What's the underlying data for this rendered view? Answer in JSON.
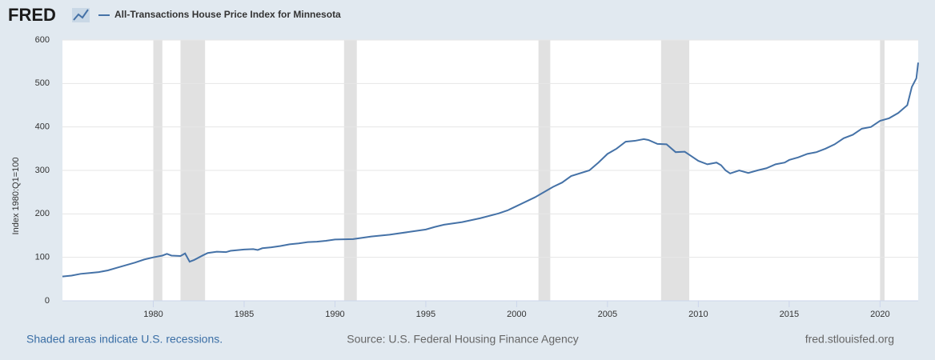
{
  "logo": "FRED",
  "chart_data": {
    "type": "line",
    "ylabel": "Index 1980:Q1=100",
    "series": [
      {
        "name": "All-Transactions House Price Index for Minnesota",
        "color": "#4572a7",
        "x": [
          1975,
          1975.5,
          1976,
          1976.5,
          1977,
          1977.5,
          1978,
          1978.5,
          1979,
          1979.5,
          1980,
          1980.5,
          1980.75,
          1981,
          1981.5,
          1981.75,
          1982,
          1982.25,
          1982.75,
          1983,
          1983.5,
          1984,
          1984.25,
          1985,
          1985.5,
          1985.75,
          1986,
          1986.5,
          1987,
          1987.5,
          1988,
          1988.5,
          1989,
          1989.5,
          1990,
          1991,
          1991.5,
          1992,
          1993,
          1994,
          1995,
          1995.5,
          1996,
          1997,
          1998,
          1999,
          1999.5,
          2000,
          2001,
          2002,
          2002.5,
          2003,
          2004,
          2004.5,
          2005,
          2005.5,
          2006,
          2006.5,
          2007,
          2007.25,
          2007.75,
          2008.25,
          2008.75,
          2009.25,
          2009.5,
          2010,
          2010.5,
          2011,
          2011.25,
          2011.5,
          2011.75,
          2012.25,
          2012.75,
          2013.25,
          2013.75,
          2014.25,
          2014.75,
          2015,
          2015.5,
          2016,
          2016.5,
          2017,
          2017.5,
          2018,
          2018.5,
          2019,
          2019.5,
          2020,
          2020.5,
          2021,
          2021.5,
          2021.75,
          2022,
          2022.1
        ],
        "values": [
          56,
          58,
          62,
          64,
          66,
          70,
          76,
          82,
          88,
          95,
          100,
          104,
          108,
          104,
          103,
          109,
          90,
          94,
          105,
          110,
          113,
          112,
          115,
          118,
          119,
          117,
          121,
          123,
          126,
          130,
          132,
          135,
          136,
          138,
          141,
          142,
          145,
          148,
          152,
          158,
          164,
          170,
          175,
          181,
          190,
          201,
          208,
          218,
          238,
          262,
          272,
          287,
          300,
          318,
          338,
          350,
          366,
          368,
          372,
          370,
          361,
          360,
          342,
          343,
          336,
          322,
          314,
          318,
          312,
          300,
          293,
          300,
          294,
          300,
          305,
          314,
          318,
          324,
          330,
          338,
          342,
          350,
          360,
          374,
          382,
          396,
          400,
          414,
          420,
          432,
          450,
          492,
          512,
          548
        ]
      }
    ],
    "recessions": [
      [
        1980,
        1980.5
      ],
      [
        1981.5,
        1982.85
      ],
      [
        1990.5,
        1991.2
      ],
      [
        2001.2,
        2001.85
      ],
      [
        2007.95,
        2009.5
      ],
      [
        2020,
        2020.25
      ]
    ],
    "recession_color": "#e1e1e1",
    "xlim": [
      1975,
      2022.1
    ],
    "xticks": [
      1980,
      1985,
      1990,
      1995,
      2000,
      2005,
      2010,
      2015,
      2020
    ],
    "ylim": [
      0,
      600
    ],
    "yticks": [
      0,
      100,
      200,
      300,
      400,
      500,
      600
    ],
    "grid": true,
    "footer_left": "Shaded areas indicate U.S. recessions.",
    "source": "Source: U.S. Federal Housing Finance Agency",
    "footer_right": "fred.stlouisfed.org"
  }
}
